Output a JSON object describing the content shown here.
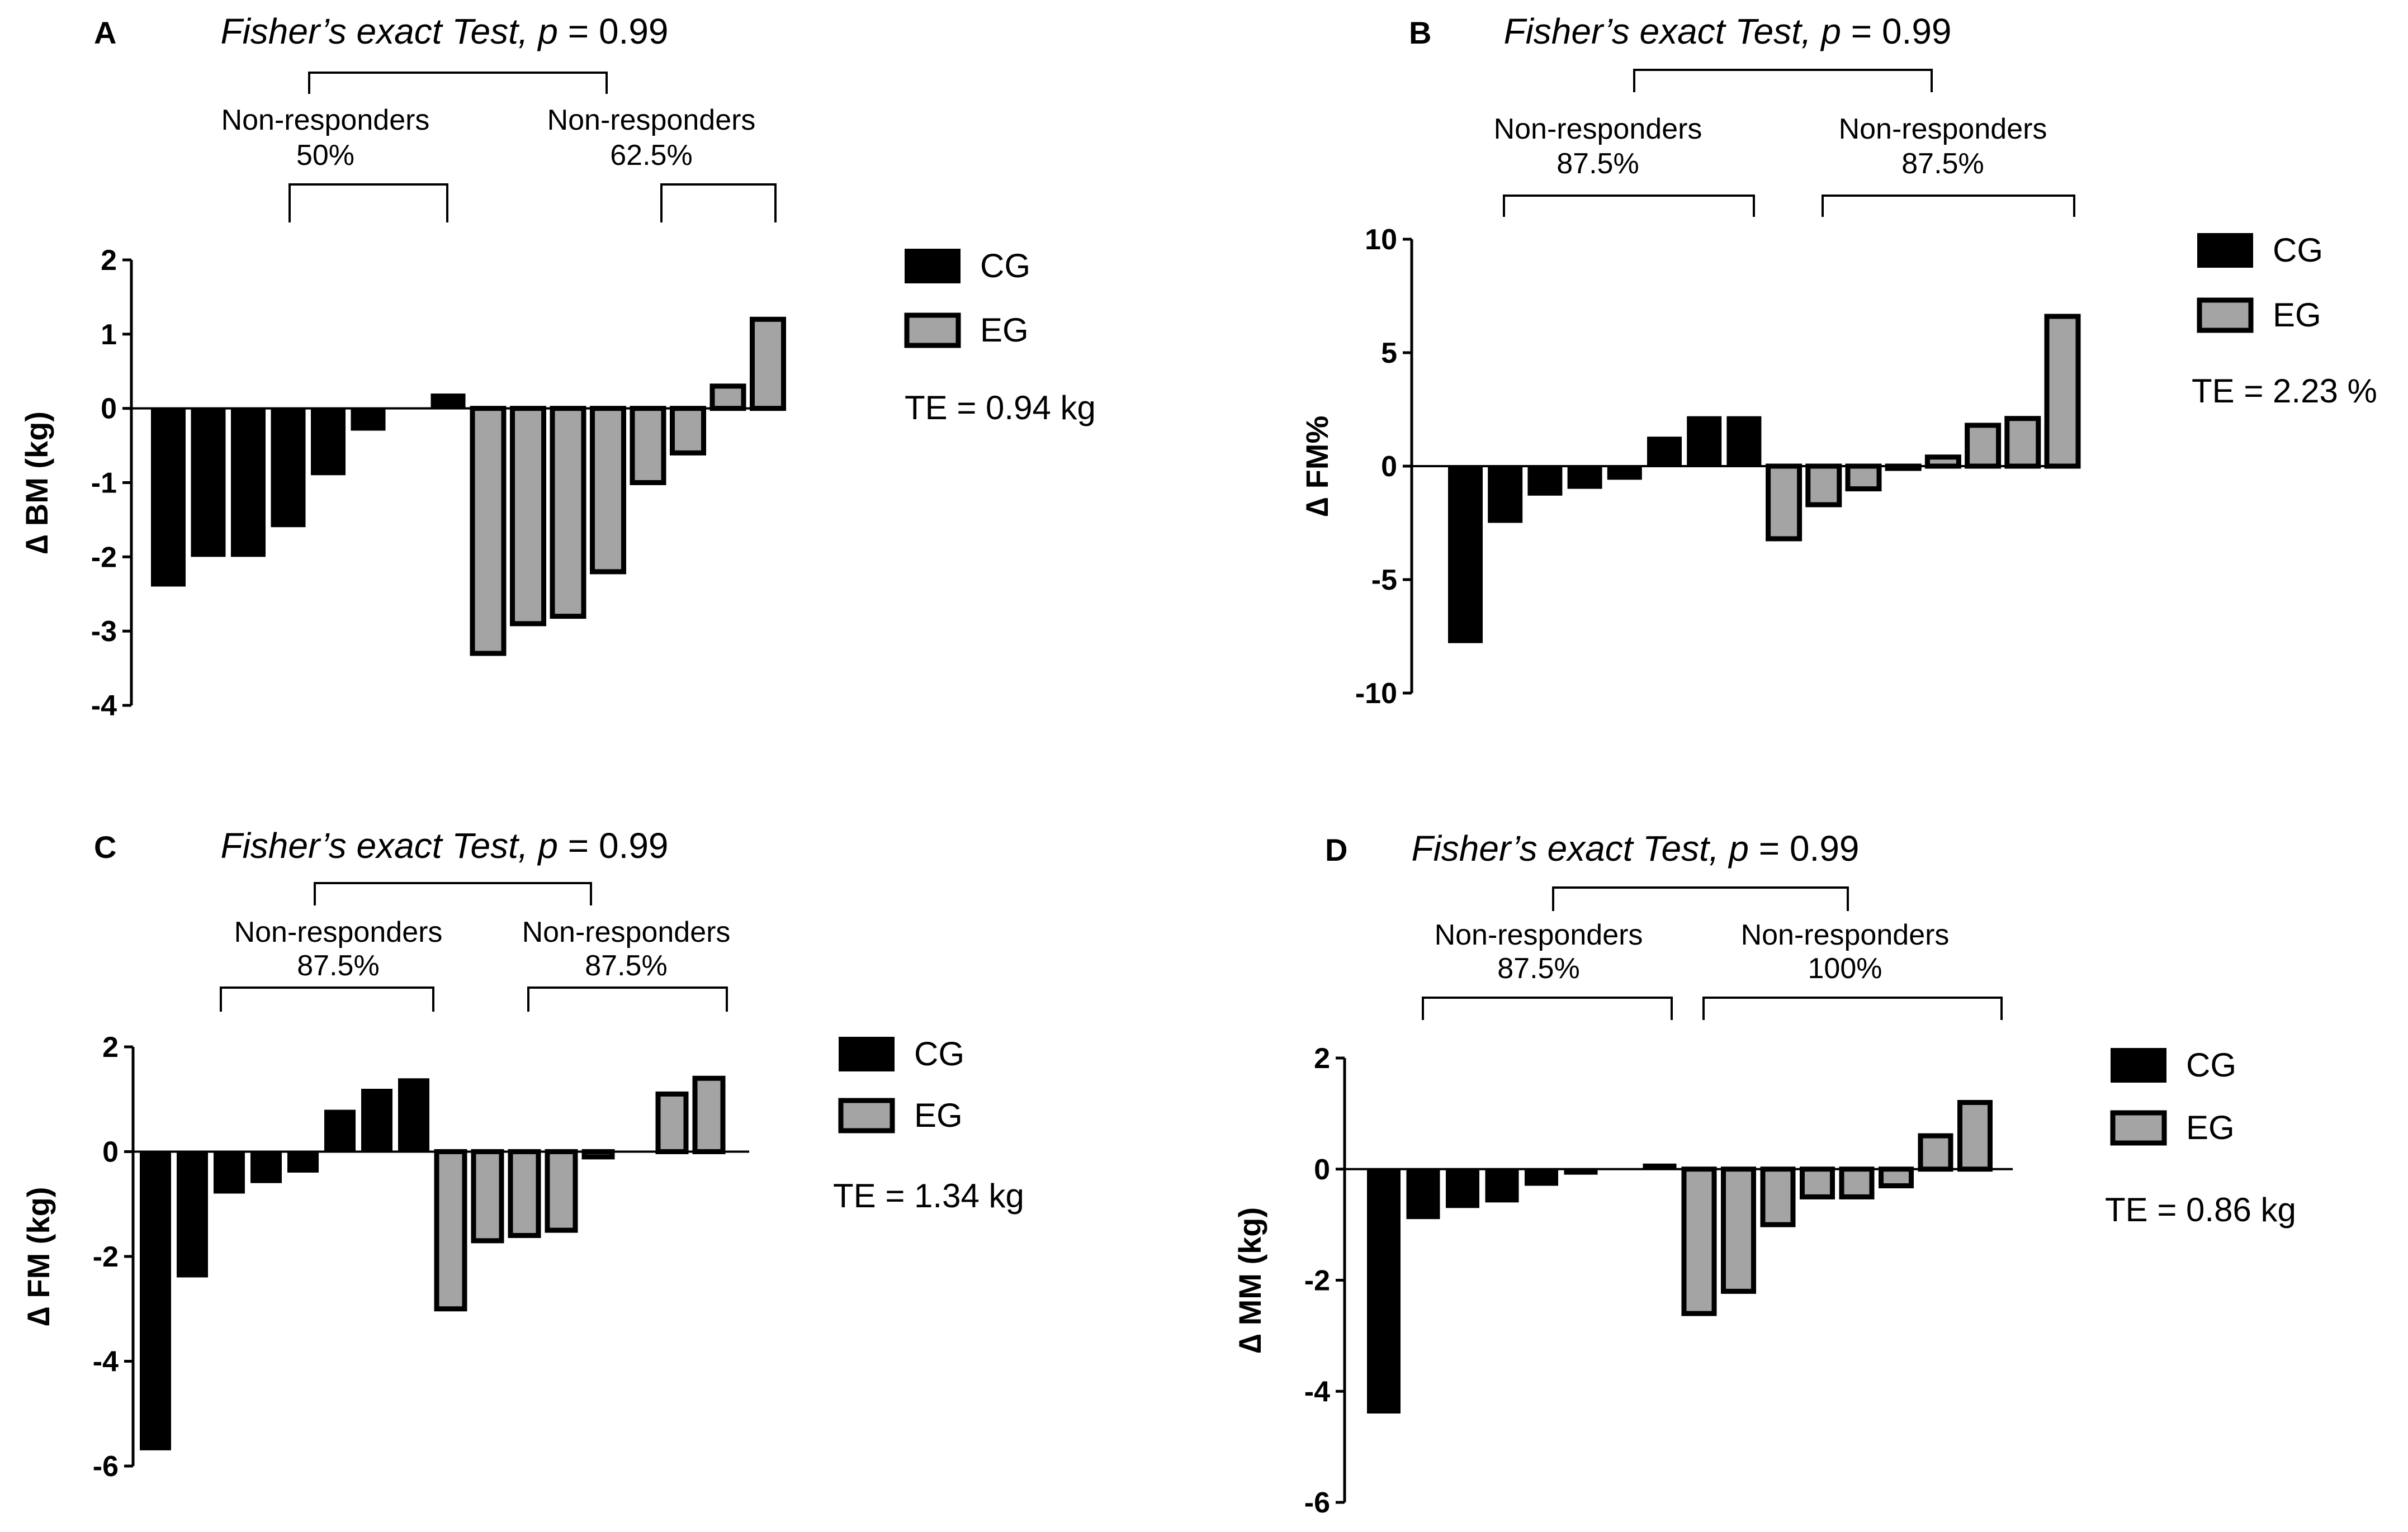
{
  "colors": {
    "cg_fill": "#000000",
    "eg_fill": "#a4a4a4",
    "eg_stroke": "#000000",
    "line": "#000000"
  },
  "chart_data": [
    {
      "id": "A",
      "type": "bar",
      "panel_label": "A",
      "title_prefix": "Fisher’s exact Test,",
      "title_p": "p",
      "title_suffix": " = 0.99",
      "nr_left": {
        "label": "Non-responders",
        "pct": "50%"
      },
      "nr_right": {
        "label": "Non-responders",
        "pct": "62.5%"
      },
      "ylabel": "∆ BM (kg)",
      "ylim": [
        -4,
        2
      ],
      "ticks": [
        "2",
        "1",
        "0",
        "-1",
        "-2",
        "-3",
        "-4"
      ],
      "tick_values": [
        2,
        1,
        0,
        -1,
        -2,
        -3,
        -4
      ],
      "legend": [
        "CG",
        "EG"
      ],
      "te": "TE = 0.94 kg",
      "series": [
        {
          "name": "CG",
          "values": [
            -2.4,
            -2.0,
            -2.0,
            -1.6,
            -0.9,
            -0.3,
            0.0,
            0.2
          ]
        },
        {
          "name": "EG",
          "values": [
            -3.3,
            -2.9,
            -2.8,
            -2.2,
            -1.0,
            -0.6,
            0.3,
            1.2
          ]
        }
      ]
    },
    {
      "id": "B",
      "type": "bar",
      "panel_label": "B",
      "title_prefix": "Fisher’s exact Test,",
      "title_p": "p",
      "title_suffix": " = 0.99",
      "nr_left": {
        "label": "Non-responders",
        "pct": "87.5%"
      },
      "nr_right": {
        "label": "Non-responders",
        "pct": "87.5%"
      },
      "ylabel": "∆ FM%",
      "ylim": [
        -10,
        10
      ],
      "ticks": [
        "10",
        "5",
        "0",
        "-5",
        "-10"
      ],
      "tick_values": [
        10,
        5,
        0,
        -5,
        -10
      ],
      "legend": [
        "CG",
        "EG"
      ],
      "te": "TE = 2.23 %",
      "series": [
        {
          "name": "CG",
          "values": [
            -7.8,
            -2.5,
            -1.3,
            -1.0,
            -0.6,
            1.3,
            2.2,
            2.2
          ]
        },
        {
          "name": "EG",
          "values": [
            -3.2,
            -1.7,
            -1.0,
            -0.1,
            0.4,
            1.8,
            2.1,
            6.6
          ]
        }
      ]
    },
    {
      "id": "C",
      "type": "bar",
      "panel_label": "C",
      "title_prefix": "Fisher’s exact Test,",
      "title_p": "p",
      "title_suffix": " = 0.99",
      "nr_left": {
        "label": "Non-responders",
        "pct": "87.5%"
      },
      "nr_right": {
        "label": "Non-responders",
        "pct": "87.5%"
      },
      "ylabel": "∆ FM (kg)",
      "ylim": [
        -6,
        2
      ],
      "ticks": [
        "2",
        "0",
        "-2",
        "-4",
        "-6"
      ],
      "tick_values": [
        2,
        0,
        -2,
        -4,
        -6
      ],
      "legend": [
        "CG",
        "EG"
      ],
      "te": "TE = 1.34 kg",
      "series": [
        {
          "name": "CG",
          "values": [
            -5.7,
            -2.4,
            -0.8,
            -0.6,
            -0.4,
            0.8,
            1.2,
            1.4
          ]
        },
        {
          "name": "EG",
          "values": [
            -3.0,
            -1.7,
            -1.6,
            -1.5,
            -0.1,
            0.0,
            1.1,
            1.4
          ]
        }
      ]
    },
    {
      "id": "D",
      "type": "bar",
      "panel_label": "D",
      "title_prefix": "Fisher’s exact Test,",
      "title_p": "p",
      "title_suffix": " = 0.99",
      "nr_left": {
        "label": "Non-responders",
        "pct": "87.5%"
      },
      "nr_right": {
        "label": "Non-responders",
        "pct": "100%"
      },
      "ylabel": "∆ MM (kg)",
      "ylim": [
        -6,
        2
      ],
      "ticks": [
        "2",
        "0",
        "-2",
        "-4",
        "-6"
      ],
      "tick_values": [
        2,
        0,
        -2,
        -4,
        -6
      ],
      "legend": [
        "CG",
        "EG"
      ],
      "te": "TE = 0.86 kg",
      "series": [
        {
          "name": "CG",
          "values": [
            -4.4,
            -0.9,
            -0.7,
            -0.6,
            -0.3,
            -0.1,
            0.0,
            0.1
          ]
        },
        {
          "name": "EG",
          "values": [
            -2.6,
            -2.2,
            -1.0,
            -0.5,
            -0.5,
            -0.3,
            0.6,
            1.2
          ]
        }
      ]
    }
  ]
}
